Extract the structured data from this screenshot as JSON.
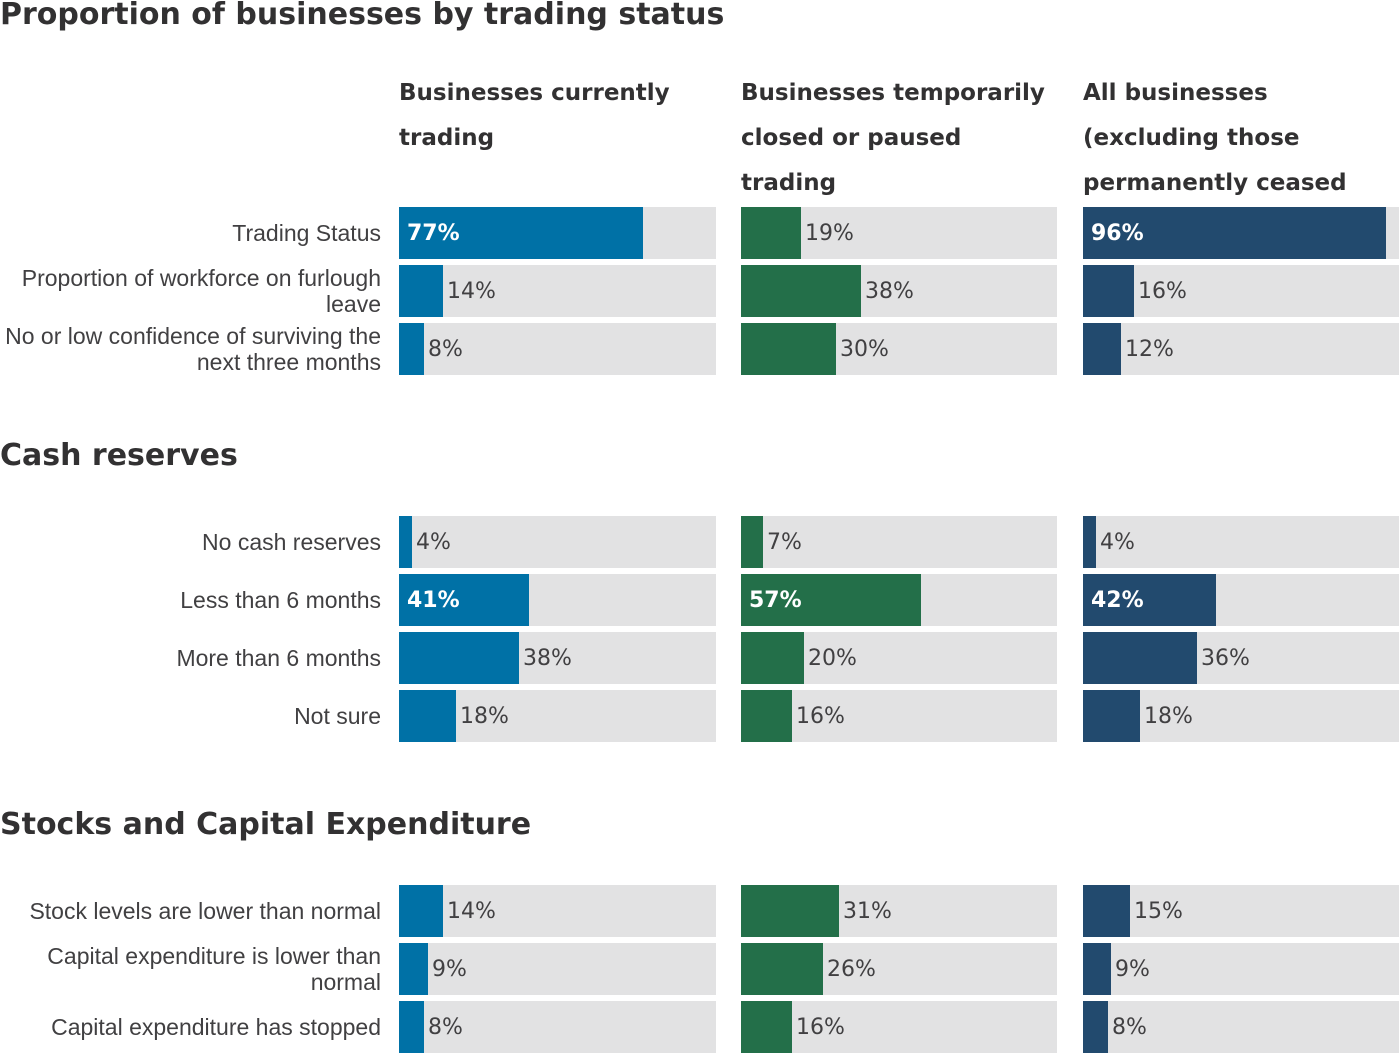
{
  "columns": [
    {
      "label": "Businesses currently trading",
      "color": "#0071a6"
    },
    {
      "label": "Businesses temporarily closed or paused trading",
      "color": "#236f49"
    },
    {
      "label": "All businesses (excluding those permanently ceased trading)",
      "color": "#224a6e"
    }
  ],
  "chart_data": {
    "type": "bar",
    "orientation": "horizontal",
    "xlim": [
      0,
      100
    ],
    "unit": "%",
    "sections": [
      {
        "title": "Proportion of businesses by trading status",
        "rows": [
          {
            "label": "Trading Status",
            "values": [
              77,
              19,
              96
            ],
            "labels": [
              "77%",
              "19%",
              "96%"
            ]
          },
          {
            "label": "Proportion of workforce on furlough leave",
            "values": [
              14,
              38,
              16
            ],
            "labels": [
              "14%",
              "38%",
              "16%"
            ]
          },
          {
            "label": "No or low confidence of surviving the next three months",
            "values": [
              8,
              30,
              12
            ],
            "labels": [
              "8%",
              "30%",
              "12%"
            ]
          }
        ]
      },
      {
        "title": "Cash reserves",
        "rows": [
          {
            "label": "No cash reserves",
            "values": [
              4,
              7,
              4
            ],
            "labels": [
              "4%",
              "7%",
              "4%"
            ]
          },
          {
            "label": "Less than 6 months",
            "values": [
              41,
              57,
              42
            ],
            "labels": [
              "41%",
              "57%",
              "42%"
            ]
          },
          {
            "label": "More than 6 months",
            "values": [
              38,
              20,
              36
            ],
            "labels": [
              "38%",
              "20%",
              "36%"
            ]
          },
          {
            "label": "Not sure",
            "values": [
              18,
              16,
              18
            ],
            "labels": [
              "18%",
              "16%",
              "18%"
            ]
          }
        ]
      },
      {
        "title": "Stocks and Capital Expenditure",
        "rows": [
          {
            "label": "Stock levels are lower than normal",
            "values": [
              14,
              31,
              15
            ],
            "labels": [
              "14%",
              "31%",
              "15%"
            ]
          },
          {
            "label": "Capital expenditure is lower than normal",
            "values": [
              9,
              26,
              9
            ],
            "labels": [
              "9%",
              "26%",
              "9%"
            ]
          },
          {
            "label": "Capital expenditure has stopped",
            "values": [
              8,
              16,
              8
            ],
            "labels": [
              "8%",
              "16%",
              "8%"
            ]
          }
        ]
      }
    ]
  }
}
